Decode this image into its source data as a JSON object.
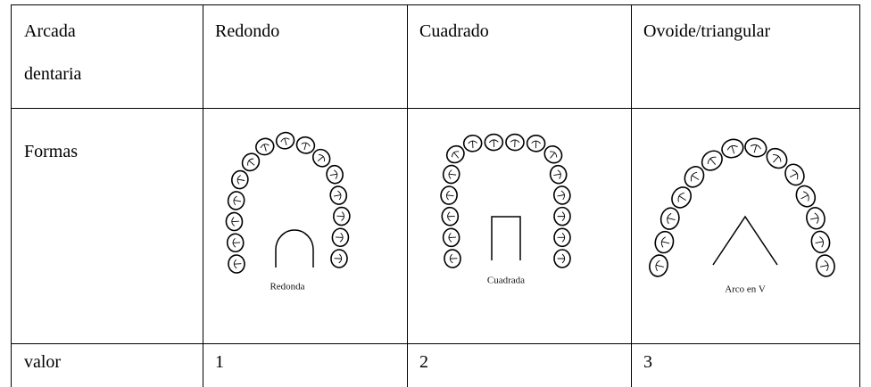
{
  "table": {
    "rows": [
      [
        "Arcada dentaria",
        "Redondo",
        "Cuadrado",
        "Ovoide/triangular"
      ],
      [
        "Formas",
        "Redonda",
        "Cuadrada",
        "Arco en V"
      ],
      [
        "valor",
        1,
        2,
        3
      ]
    ]
  }
}
